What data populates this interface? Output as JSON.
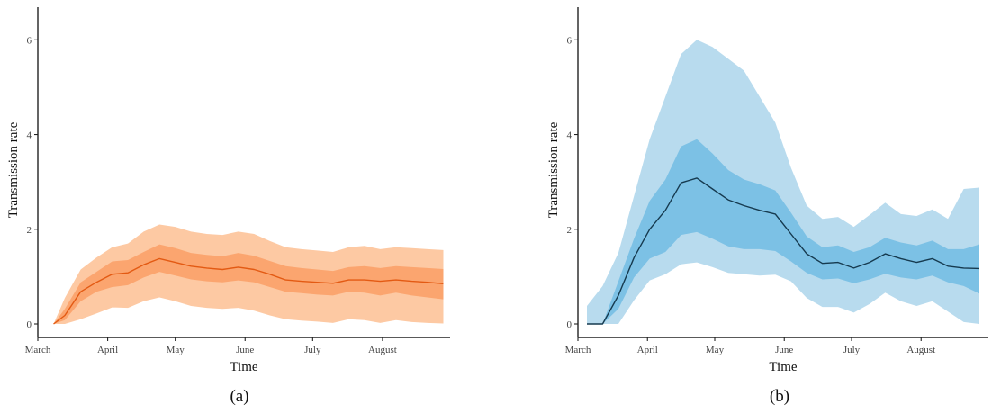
{
  "chart_data": [
    {
      "type": "area",
      "panel": "a",
      "caption": "(a)",
      "xlabel": "Time",
      "ylabel": "Transmission rate",
      "ylim": [
        0,
        6.5
      ],
      "yticks": [
        0,
        2,
        4,
        6
      ],
      "xlim": [
        "2020-03-01",
        "2020-08-31"
      ],
      "xticks": [
        {
          "label": "March",
          "date": "2020-03-01"
        },
        {
          "label": "April",
          "date": "2020-04-01"
        },
        {
          "label": "May",
          "date": "2020-05-01"
        },
        {
          "label": "June",
          "date": "2020-06-01"
        },
        {
          "label": "July",
          "date": "2020-07-01"
        },
        {
          "label": "August",
          "date": "2020-08-01"
        }
      ],
      "colors": {
        "outer": "#fdc9a3",
        "inner": "#fba56f",
        "line": "#e35a13"
      },
      "x": [
        "2020-03-08",
        "2020-03-13",
        "2020-03-20",
        "2020-03-27",
        "2020-04-03",
        "2020-04-10",
        "2020-04-17",
        "2020-04-24",
        "2020-05-01",
        "2020-05-08",
        "2020-05-15",
        "2020-05-22",
        "2020-05-29",
        "2020-06-05",
        "2020-06-12",
        "2020-06-19",
        "2020-06-26",
        "2020-07-03",
        "2020-07-10",
        "2020-07-17",
        "2020-07-24",
        "2020-07-31",
        "2020-08-07",
        "2020-08-14",
        "2020-08-21",
        "2020-08-28"
      ],
      "median": [
        0,
        0.18,
        0.68,
        0.88,
        1.05,
        1.08,
        1.25,
        1.38,
        1.3,
        1.22,
        1.18,
        1.15,
        1.2,
        1.15,
        1.05,
        0.93,
        0.9,
        0.88,
        0.86,
        0.93,
        0.93,
        0.9,
        0.93,
        0.9,
        0.88,
        0.85
      ],
      "inner_low": [
        0,
        0.08,
        0.48,
        0.68,
        0.78,
        0.82,
        0.98,
        1.1,
        1.02,
        0.94,
        0.9,
        0.88,
        0.92,
        0.88,
        0.78,
        0.68,
        0.65,
        0.62,
        0.6,
        0.68,
        0.66,
        0.6,
        0.66,
        0.6,
        0.56,
        0.52
      ],
      "inner_high": [
        0,
        0.32,
        0.88,
        1.1,
        1.32,
        1.35,
        1.52,
        1.68,
        1.6,
        1.5,
        1.46,
        1.43,
        1.5,
        1.44,
        1.33,
        1.22,
        1.18,
        1.15,
        1.12,
        1.2,
        1.22,
        1.18,
        1.22,
        1.2,
        1.18,
        1.16
      ],
      "outer_low": [
        0,
        0,
        0.1,
        0.22,
        0.35,
        0.34,
        0.48,
        0.56,
        0.48,
        0.38,
        0.34,
        0.32,
        0.34,
        0.28,
        0.18,
        0.1,
        0.07,
        0.05,
        0.02,
        0.1,
        0.08,
        0.02,
        0.08,
        0.04,
        0.02,
        0.01
      ],
      "outer_high": [
        0,
        0.55,
        1.15,
        1.4,
        1.62,
        1.7,
        1.95,
        2.1,
        2.05,
        1.95,
        1.9,
        1.88,
        1.95,
        1.9,
        1.75,
        1.62,
        1.58,
        1.55,
        1.52,
        1.62,
        1.65,
        1.58,
        1.62,
        1.6,
        1.58,
        1.56
      ]
    },
    {
      "type": "area",
      "panel": "b",
      "caption": "(b)",
      "xlabel": "Time",
      "ylabel": "Transmission rate",
      "ylim": [
        0,
        6.5
      ],
      "yticks": [
        0,
        2,
        4,
        6
      ],
      "xlim": [
        "2020-03-01",
        "2020-08-31"
      ],
      "xticks": [
        {
          "label": "March",
          "date": "2020-03-01"
        },
        {
          "label": "April",
          "date": "2020-04-01"
        },
        {
          "label": "May",
          "date": "2020-05-01"
        },
        {
          "label": "June",
          "date": "2020-06-01"
        },
        {
          "label": "July",
          "date": "2020-07-01"
        },
        {
          "label": "August",
          "date": "2020-08-01"
        }
      ],
      "colors": {
        "outer": "#b8dbee",
        "inner": "#7cc1e5",
        "line": "#163a4f"
      },
      "x": [
        "2020-03-05",
        "2020-03-12",
        "2020-03-19",
        "2020-03-26",
        "2020-04-02",
        "2020-04-09",
        "2020-04-16",
        "2020-04-23",
        "2020-04-30",
        "2020-05-07",
        "2020-05-14",
        "2020-05-21",
        "2020-05-28",
        "2020-06-04",
        "2020-06-11",
        "2020-06-18",
        "2020-06-25",
        "2020-07-02",
        "2020-07-09",
        "2020-07-16",
        "2020-07-23",
        "2020-07-30",
        "2020-08-06",
        "2020-08-13",
        "2020-08-20",
        "2020-08-27"
      ],
      "median": [
        0,
        0,
        0.6,
        1.4,
        2.0,
        2.4,
        2.98,
        3.08,
        2.85,
        2.62,
        2.5,
        2.4,
        2.32,
        1.9,
        1.48,
        1.28,
        1.3,
        1.18,
        1.3,
        1.48,
        1.38,
        1.3,
        1.38,
        1.22,
        1.18,
        1.17
      ],
      "inner_low": [
        0,
        0,
        0.32,
        0.98,
        1.38,
        1.52,
        1.88,
        1.94,
        1.8,
        1.64,
        1.58,
        1.58,
        1.54,
        1.32,
        1.08,
        0.94,
        0.96,
        0.86,
        0.94,
        1.06,
        0.98,
        0.94,
        1.02,
        0.88,
        0.8,
        0.64
      ],
      "inner_high": [
        0,
        0,
        0.9,
        1.8,
        2.6,
        3.05,
        3.75,
        3.9,
        3.6,
        3.25,
        3.05,
        2.95,
        2.82,
        2.35,
        1.85,
        1.62,
        1.66,
        1.52,
        1.62,
        1.82,
        1.72,
        1.66,
        1.76,
        1.58,
        1.58,
        1.68
      ],
      "outer_low": [
        0,
        0,
        0,
        0.5,
        0.92,
        1.05,
        1.26,
        1.3,
        1.2,
        1.08,
        1.05,
        1.02,
        1.04,
        0.9,
        0.55,
        0.36,
        0.36,
        0.24,
        0.42,
        0.66,
        0.48,
        0.38,
        0.48,
        0.26,
        0.04,
        0.0
      ],
      "outer_high": [
        0.38,
        0.8,
        1.5,
        2.7,
        3.9,
        4.8,
        5.7,
        6.0,
        5.85,
        5.6,
        5.35,
        4.8,
        4.25,
        3.3,
        2.5,
        2.22,
        2.26,
        2.05,
        2.3,
        2.56,
        2.32,
        2.28,
        2.42,
        2.22,
        2.85,
        2.88
      ]
    }
  ]
}
